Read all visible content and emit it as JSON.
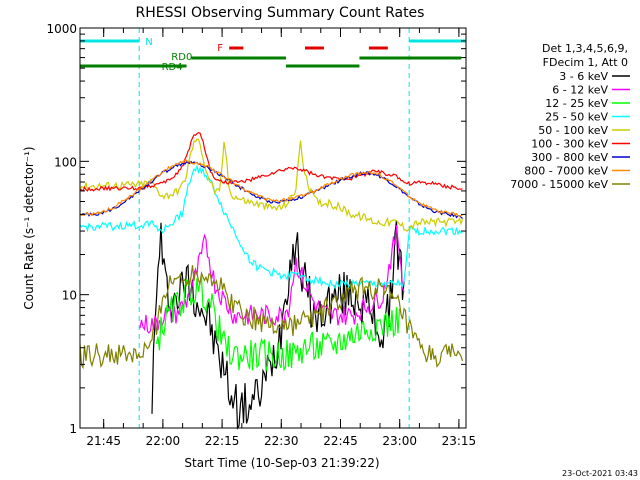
{
  "chart_data": {
    "type": "line",
    "title": "RHESSI Observing Summary Count Rates",
    "xlabel": "Start Time (10-Sep-03 21:39:22)",
    "ylabel": "Count Rate (s⁻¹ detector⁻¹)",
    "y_scale": "log",
    "ylim": [
      1,
      1000
    ],
    "xlim_minutes": [
      21.65,
      23.28
    ],
    "y_ticks": [
      {
        "value": 1,
        "label": "1"
      },
      {
        "value": 10,
        "label": "10"
      },
      {
        "value": 100,
        "label": "100"
      },
      {
        "value": 1000,
        "label": "1000"
      }
    ],
    "x_ticks": [
      {
        "value": 21.75,
        "label": "21:45"
      },
      {
        "value": 22.0,
        "label": "22:00"
      },
      {
        "value": 22.25,
        "label": "22:15"
      },
      {
        "value": 22.5,
        "label": "22:30"
      },
      {
        "value": 22.75,
        "label": "22:45"
      },
      {
        "value": 23.0,
        "label": "23:00"
      },
      {
        "value": 23.25,
        "label": "23:15"
      }
    ],
    "legend_header": [
      "Det 1,3,4,5,6,9,",
      "FDecim 1, Att 0"
    ],
    "legend_position": "right",
    "annotations": {
      "night_label": "N",
      "flare_label": "F",
      "rd0_label": "RD0",
      "rd4_label": "RD4"
    },
    "bars": {
      "night": [
        [
          21.65,
          21.9
        ],
        [
          23.04,
          23.28
        ]
      ],
      "flare": [
        [
          22.28,
          22.34
        ],
        [
          22.6,
          22.68
        ],
        [
          22.87,
          22.95
        ]
      ],
      "rd0": [
        [
          22.12,
          22.52
        ],
        [
          22.83,
          23.26
        ]
      ],
      "rd4": [
        [
          21.65,
          22.1
        ],
        [
          22.52,
          22.83
        ]
      ],
      "night_boundaries": [
        21.9,
        23.04
      ],
      "day_boundaries": [
        21.65,
        23.28
      ]
    },
    "series": [
      {
        "name": "3 - 6 keV",
        "color": "#000000",
        "x": [
          21.65,
          21.9,
          21.95,
          21.99,
          22.0,
          22.02,
          22.05,
          22.08,
          22.1,
          22.12,
          22.15,
          22.18,
          22.2,
          22.22,
          22.25,
          22.28,
          22.3,
          22.33,
          22.36,
          22.4,
          22.44,
          22.48,
          22.5,
          22.53,
          22.56,
          22.6,
          22.63,
          22.65,
          22.68,
          22.71,
          22.75,
          22.78,
          22.82,
          22.86,
          22.9,
          22.93,
          22.96,
          22.98,
          23.0,
          23.02,
          23.05,
          23.1,
          23.15,
          23.2,
          23.27
        ],
        "y": [
          null,
          null,
          1.3,
          35,
          15,
          10,
          9,
          11,
          13,
          12,
          9,
          7,
          6,
          4,
          3,
          2,
          1.6,
          1.4,
          1.5,
          1.7,
          2.5,
          4,
          6,
          15,
          25,
          12,
          8,
          6,
          8,
          9,
          10,
          10,
          10,
          8,
          6,
          5,
          8,
          30,
          20,
          9,
          null,
          null,
          null,
          null,
          null
        ]
      },
      {
        "name": "6 - 12 keV",
        "color": "#ff00ff",
        "x": [
          21.65,
          21.9,
          21.97,
          22.0,
          22.05,
          22.1,
          22.14,
          22.18,
          22.22,
          22.26,
          22.28,
          22.3,
          22.33,
          22.38,
          22.45,
          22.5,
          22.53,
          22.56,
          22.6,
          22.65,
          22.7,
          22.75,
          22.8,
          22.85,
          22.9,
          22.93,
          22.96,
          22.99,
          23.02,
          23.06,
          23.12,
          23.2,
          23.27
        ],
        "y": [
          null,
          6,
          6,
          7,
          7,
          9,
          14,
          25,
          12,
          9,
          8,
          7,
          7,
          7,
          7,
          7,
          8,
          18,
          12,
          8,
          7,
          7,
          7,
          8,
          9,
          10,
          18,
          30,
          10,
          null,
          null,
          null,
          null
        ]
      },
      {
        "name": "12 - 25 keV",
        "color": "#00ff00",
        "x": [
          21.65,
          21.9,
          21.97,
          22.0,
          22.05,
          22.1,
          22.15,
          22.18,
          22.22,
          22.26,
          22.3,
          22.35,
          22.4,
          22.45,
          22.5,
          22.55,
          22.6,
          22.65,
          22.7,
          22.75,
          22.8,
          22.85,
          22.9,
          22.95,
          23.0,
          23.05,
          23.1,
          23.15,
          23.2,
          23.27
        ],
        "y": [
          null,
          null,
          4,
          6,
          8,
          10,
          11,
          10,
          7,
          4,
          3.5,
          3.5,
          3.5,
          3.5,
          3.5,
          3.5,
          4,
          4,
          4,
          4.5,
          5,
          5.5,
          6,
          6,
          6.5,
          null,
          null,
          null,
          null,
          null
        ]
      },
      {
        "name": "25 - 50 keV",
        "color": "#00ffff",
        "x": [
          21.65,
          21.9,
          21.95,
          22.0,
          22.05,
          22.08,
          22.1,
          22.13,
          22.16,
          22.2,
          22.23,
          22.25,
          22.28,
          22.31,
          22.34,
          22.37,
          22.4,
          22.45,
          22.5,
          22.53,
          22.56,
          22.58,
          22.6,
          22.62,
          22.65,
          22.7,
          22.75,
          22.8,
          22.85,
          22.9,
          22.95,
          23.0,
          23.02,
          23.04,
          23.08,
          23.15,
          23.2,
          23.27
        ],
        "y": [
          32,
          33,
          35,
          30,
          36,
          40,
          60,
          85,
          90,
          70,
          55,
          45,
          35,
          28,
          22,
          18,
          16,
          15,
          14,
          14,
          14,
          14,
          14,
          13,
          13,
          12,
          12,
          12,
          12,
          12,
          12,
          12,
          12,
          30,
          30,
          30,
          30,
          30
        ]
      },
      {
        "name": "50 - 100 keV",
        "color": "#cccc00",
        "x": [
          21.65,
          21.9,
          21.95,
          22.0,
          22.05,
          22.08,
          22.1,
          22.12,
          22.14,
          22.16,
          22.18,
          22.2,
          22.22,
          22.24,
          22.26,
          22.28,
          22.3,
          22.33,
          22.36,
          22.4,
          22.45,
          22.5,
          22.53,
          22.56,
          22.58,
          22.6,
          22.62,
          22.65,
          22.7,
          22.75,
          22.8,
          22.85,
          22.9,
          22.93,
          22.96,
          22.99,
          23.02,
          23.04,
          23.08,
          23.15,
          23.2,
          23.27
        ],
        "y": [
          65,
          67,
          70,
          55,
          58,
          65,
          80,
          120,
          150,
          130,
          90,
          70,
          60,
          58,
          150,
          60,
          55,
          52,
          50,
          48,
          45,
          45,
          50,
          60,
          140,
          80,
          60,
          50,
          48,
          45,
          40,
          38,
          35,
          35,
          35,
          35,
          32,
          32,
          35,
          35,
          35,
          35
        ]
      },
      {
        "name": "100 - 300 keV",
        "color": "#ff0000",
        "x": [
          21.65,
          21.9,
          21.95,
          22.0,
          22.05,
          22.08,
          22.1,
          22.12,
          22.14,
          22.16,
          22.18,
          22.2,
          22.22,
          22.25,
          22.28,
          22.3,
          22.33,
          22.36,
          22.4,
          22.45,
          22.5,
          22.55,
          22.6,
          22.65,
          22.7,
          22.75,
          22.8,
          22.85,
          22.9,
          22.95,
          23.0,
          23.02,
          23.04,
          23.08,
          23.15,
          23.2,
          23.27
        ],
        "y": [
          62,
          63,
          66,
          68,
          78,
          90,
          110,
          140,
          165,
          160,
          120,
          85,
          75,
          70,
          70,
          70,
          70,
          72,
          75,
          80,
          85,
          90,
          85,
          78,
          75,
          75,
          75,
          80,
          85,
          80,
          75,
          70,
          68,
          70,
          68,
          65,
          62
        ]
      },
      {
        "name": "300 - 800 keV",
        "color": "#0000cc",
        "x": [
          21.65,
          21.7,
          21.75,
          21.8,
          21.85,
          21.9,
          21.95,
          22.0,
          22.05,
          22.1,
          22.15,
          22.2,
          22.25,
          22.3,
          22.35,
          22.4,
          22.45,
          22.5,
          22.55,
          22.6,
          22.65,
          22.7,
          22.75,
          22.8,
          22.85,
          22.9,
          22.95,
          23.0,
          23.05,
          23.1,
          23.15,
          23.2,
          23.27
        ],
        "y": [
          40,
          40,
          41,
          45,
          52,
          60,
          70,
          82,
          92,
          98,
          95,
          88,
          78,
          68,
          60,
          54,
          50,
          50,
          52,
          55,
          60,
          66,
          72,
          78,
          82,
          80,
          72,
          62,
          52,
          46,
          42,
          40,
          38
        ]
      },
      {
        "name": "800 - 7000 keV",
        "color": "#ff8800",
        "x": [
          21.65,
          21.7,
          21.75,
          21.8,
          21.85,
          21.9,
          21.95,
          22.0,
          22.05,
          22.1,
          22.15,
          22.2,
          22.25,
          22.3,
          22.35,
          22.4,
          22.45,
          22.5,
          22.55,
          22.6,
          22.65,
          22.7,
          22.75,
          22.8,
          22.85,
          22.9,
          22.95,
          23.0,
          23.05,
          23.1,
          23.15,
          23.2,
          23.27
        ],
        "y": [
          40,
          40,
          42,
          46,
          53,
          61,
          71,
          84,
          95,
          100,
          96,
          89,
          79,
          69,
          61,
          55,
          51,
          51,
          53,
          56,
          61,
          67,
          73,
          79,
          83,
          81,
          73,
          63,
          53,
          47,
          43,
          41,
          39
        ]
      },
      {
        "name": "7000 - 15000 keV",
        "color": "#808000",
        "x": [
          21.65,
          21.7,
          21.75,
          21.8,
          21.85,
          21.9,
          21.95,
          22.0,
          22.05,
          22.1,
          22.15,
          22.2,
          22.25,
          22.3,
          22.35,
          22.4,
          22.45,
          22.5,
          22.55,
          22.6,
          22.65,
          22.7,
          22.75,
          22.8,
          22.85,
          22.9,
          22.95,
          23.0,
          23.05,
          23.1,
          23.15,
          23.2,
          23.27
        ],
        "y": [
          3.5,
          3.5,
          3.5,
          3.5,
          3.5,
          3.5,
          4,
          10,
          13,
          14,
          15,
          14,
          11,
          8.5,
          7,
          6.5,
          6,
          6,
          6,
          6.5,
          7,
          8,
          9,
          10.5,
          11.5,
          11,
          10,
          8,
          5,
          3.5,
          3.5,
          3.5,
          3.5
        ]
      }
    ]
  },
  "footer": {
    "timestamp": "23-Oct-2021 03:43"
  }
}
